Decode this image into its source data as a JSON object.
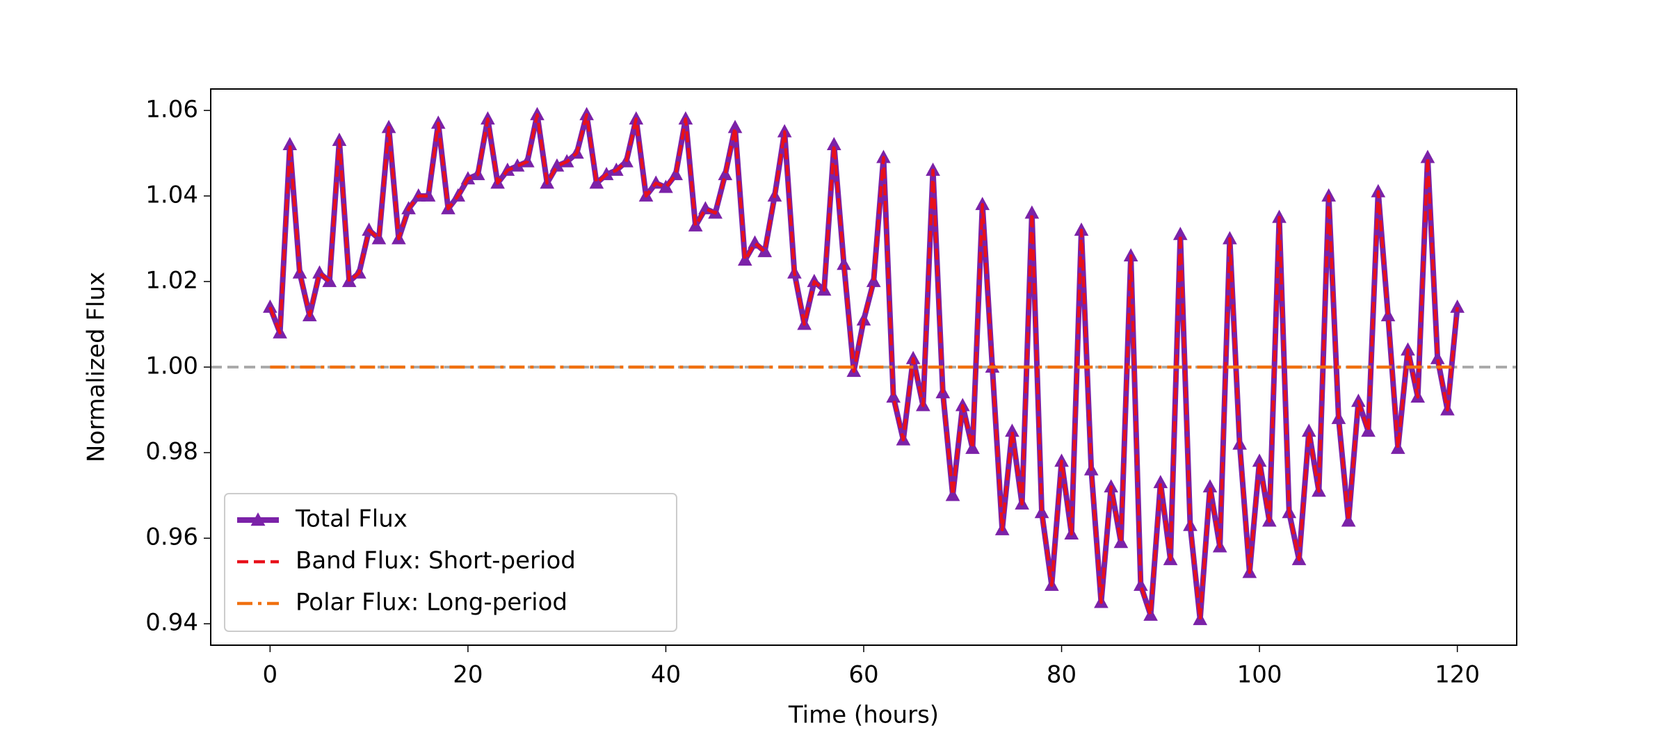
{
  "chart_data": {
    "type": "line",
    "xlabel": "Time (hours)",
    "ylabel": "Normalized Flux",
    "x": [
      0,
      1,
      2,
      3,
      4,
      5,
      6,
      7,
      8,
      9,
      10,
      11,
      12,
      13,
      14,
      15,
      16,
      17,
      18,
      19,
      20,
      21,
      22,
      23,
      24,
      25,
      26,
      27,
      28,
      29,
      30,
      31,
      32,
      33,
      34,
      35,
      36,
      37,
      38,
      39,
      40,
      41,
      42,
      43,
      44,
      45,
      46,
      47,
      48,
      49,
      50,
      51,
      52,
      53,
      54,
      55,
      56,
      57,
      58,
      59,
      60,
      61,
      62,
      63,
      64,
      65,
      66,
      67,
      68,
      69,
      70,
      71,
      72,
      73,
      74,
      75,
      76,
      77,
      78,
      79,
      80,
      81,
      82,
      83,
      84,
      85,
      86,
      87,
      88,
      89,
      90,
      91,
      92,
      93,
      94,
      95,
      96,
      97,
      98,
      99,
      100,
      101,
      102,
      103,
      104,
      105,
      106,
      107,
      108,
      109,
      110,
      111,
      112,
      113,
      114,
      115,
      116,
      117,
      118,
      119,
      120
    ],
    "series": [
      {
        "name": "Total Flux",
        "color": "#7b22a8",
        "linestyle": "solid",
        "marker": "^",
        "values": [
          1.014,
          1.008,
          1.052,
          1.022,
          1.012,
          1.022,
          1.02,
          1.053,
          1.02,
          1.022,
          1.032,
          1.03,
          1.056,
          1.03,
          1.037,
          1.04,
          1.04,
          1.057,
          1.037,
          1.04,
          1.044,
          1.045,
          1.058,
          1.043,
          1.046,
          1.047,
          1.048,
          1.059,
          1.043,
          1.047,
          1.048,
          1.05,
          1.059,
          1.043,
          1.045,
          1.046,
          1.048,
          1.058,
          1.04,
          1.043,
          1.042,
          1.045,
          1.058,
          1.033,
          1.037,
          1.036,
          1.045,
          1.056,
          1.025,
          1.029,
          1.027,
          1.04,
          1.055,
          1.022,
          1.01,
          1.02,
          1.018,
          1.052,
          1.024,
          0.999,
          1.011,
          1.02,
          1.049,
          0.993,
          0.983,
          1.002,
          0.991,
          1.046,
          0.994,
          0.97,
          0.991,
          0.981,
          1.038,
          1.0,
          0.962,
          0.985,
          0.968,
          1.036,
          0.966,
          0.949,
          0.978,
          0.961,
          1.032,
          0.976,
          0.945,
          0.972,
          0.959,
          1.026,
          0.949,
          0.942,
          0.973,
          0.955,
          1.031,
          0.963,
          0.941,
          0.972,
          0.958,
          1.03,
          0.982,
          0.952,
          0.978,
          0.964,
          1.035,
          0.966,
          0.955,
          0.985,
          0.971,
          1.04,
          0.988,
          0.964,
          0.992,
          0.985,
          1.041,
          1.012,
          0.981,
          1.004,
          0.993,
          1.049,
          1.002,
          0.99,
          1.014
        ]
      },
      {
        "name": "Band Flux: Short-period",
        "color": "#e8101a",
        "linestyle": "dashed",
        "marker": null,
        "values": [
          1.014,
          1.008,
          1.052,
          1.022,
          1.012,
          1.022,
          1.02,
          1.053,
          1.02,
          1.022,
          1.032,
          1.03,
          1.056,
          1.03,
          1.037,
          1.04,
          1.04,
          1.057,
          1.037,
          1.04,
          1.044,
          1.045,
          1.058,
          1.043,
          1.046,
          1.047,
          1.048,
          1.059,
          1.043,
          1.047,
          1.048,
          1.05,
          1.059,
          1.043,
          1.045,
          1.046,
          1.048,
          1.058,
          1.04,
          1.043,
          1.042,
          1.045,
          1.058,
          1.033,
          1.037,
          1.036,
          1.045,
          1.056,
          1.025,
          1.029,
          1.027,
          1.04,
          1.055,
          1.022,
          1.01,
          1.02,
          1.018,
          1.052,
          1.024,
          0.999,
          1.011,
          1.02,
          1.049,
          0.993,
          0.983,
          1.002,
          0.991,
          1.046,
          0.994,
          0.97,
          0.991,
          0.981,
          1.038,
          1.0,
          0.962,
          0.985,
          0.968,
          1.036,
          0.966,
          0.949,
          0.978,
          0.961,
          1.032,
          0.976,
          0.945,
          0.972,
          0.959,
          1.026,
          0.949,
          0.942,
          0.973,
          0.955,
          1.031,
          0.963,
          0.941,
          0.972,
          0.958,
          1.03,
          0.982,
          0.952,
          0.978,
          0.964,
          1.035,
          0.966,
          0.955,
          0.985,
          0.971,
          1.04,
          0.988,
          0.964,
          0.992,
          0.985,
          1.041,
          1.012,
          0.981,
          1.004,
          0.993,
          1.049,
          1.002,
          0.99,
          1.014
        ]
      },
      {
        "name": "Polar Flux: Long-period",
        "color": "#f07010",
        "linestyle": "dashdot",
        "marker": null,
        "x": [
          0,
          120
        ],
        "values": [
          1.0,
          1.0
        ]
      }
    ],
    "hline": 1,
    "hline_color": "#aaaaaa",
    "xlim": [
      -6,
      126
    ],
    "ylim": [
      0.935,
      1.065
    ],
    "xticks": [
      0,
      20,
      40,
      60,
      80,
      100,
      120
    ],
    "yticks": [
      0.94,
      0.96,
      0.98,
      {
        "value": 1,
        "label": "1.00"
      },
      1.02,
      1.04,
      1.06
    ],
    "legend": "lower left"
  }
}
